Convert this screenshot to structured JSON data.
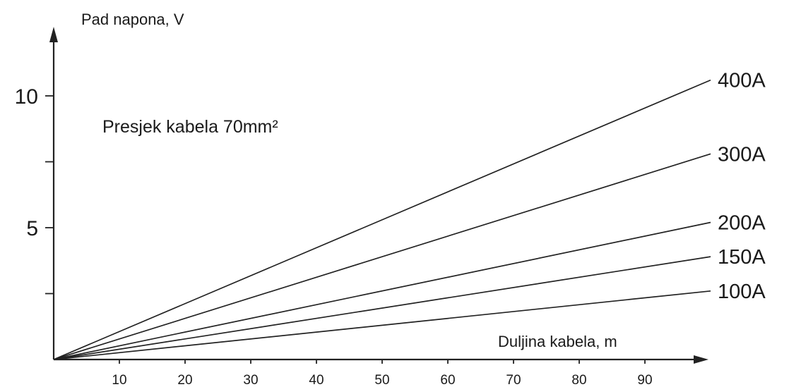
{
  "chart_data": {
    "type": "line",
    "ylabel": "Pad napona, V",
    "xlabel": "Duljina kabela, m",
    "annotation": "Presjek kabela 70mm²",
    "xlim": [
      0,
      100
    ],
    "ylim": [
      0,
      12
    ],
    "x_ticks": [
      10,
      20,
      30,
      40,
      50,
      60,
      70,
      80,
      90
    ],
    "x_tick_labels": [
      "10",
      "20",
      "30",
      "40",
      "50",
      "60",
      "70",
      "80",
      "90"
    ],
    "y_ticks": [
      2.5,
      5,
      7.5,
      10
    ],
    "y_tick_labels": [
      "",
      "5",
      "",
      "10"
    ],
    "grid": false,
    "legend": "right-end labels",
    "series": [
      {
        "name": "400A",
        "x": [
          0,
          100
        ],
        "y": [
          0,
          10.6
        ]
      },
      {
        "name": "300A",
        "x": [
          0,
          100
        ],
        "y": [
          0,
          7.8
        ]
      },
      {
        "name": "200A",
        "x": [
          0,
          100
        ],
        "y": [
          0,
          5.2
        ]
      },
      {
        "name": "150A",
        "x": [
          0,
          100
        ],
        "y": [
          0,
          3.9
        ]
      },
      {
        "name": "100A",
        "x": [
          0,
          100
        ],
        "y": [
          0,
          2.6
        ]
      }
    ]
  }
}
